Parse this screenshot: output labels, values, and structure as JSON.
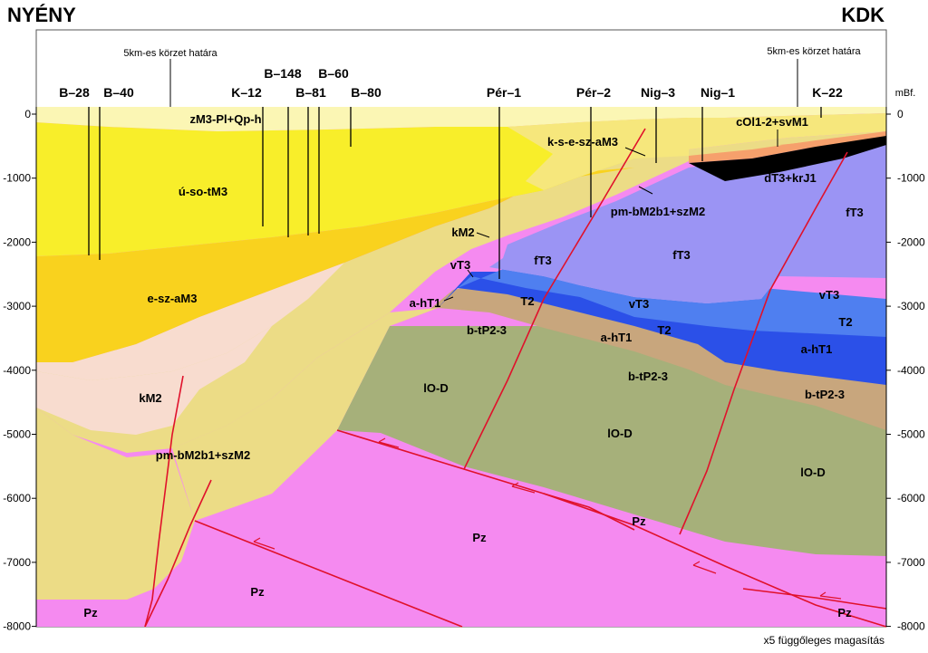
{
  "header": {
    "left_label": "NYÉNY",
    "right_label": "KDK"
  },
  "boundary_notes": {
    "left": "5km-es körzet határa",
    "right": "5km-es körzet határa"
  },
  "wells": [
    "B–28",
    "B–40",
    "K–12",
    "B–148",
    "B–81",
    "B–60",
    "B–80",
    "Pér–1",
    "Pér–2",
    "Nig–3",
    "Nig–1",
    "K–22"
  ],
  "axis": {
    "unit": "mBf.",
    "ticks": [
      "0",
      "-1000",
      "-2000",
      "-3000",
      "-4000",
      "-5000",
      "-6000",
      "-7000",
      "-8000"
    ]
  },
  "units": {
    "zm3": "zM3-Pl+Qp-h",
    "uso": "ú-so-tM3",
    "esz": "e-sz-aM3",
    "km2_left": "kM2",
    "pmb_left": "pm-bM2b1+szM2",
    "pz_1": "Pz",
    "pz_2": "Pz",
    "pz_3": "Pz",
    "pz_4": "Pz",
    "pz_5": "Pz",
    "kse": "k-s-e-sz-aM3",
    "col": "cOl1-2+svM1",
    "dt3": "dT3+krJ1",
    "pmb_right": "pm-bM2b1+szM2",
    "km2_mid": "kM2",
    "vt3_1": "vT3",
    "vt3_2": "vT3",
    "vt3_3": "vT3",
    "ft3_1": "fT3",
    "ft3_2": "fT3",
    "ft3_3": "fT3",
    "aht1_1": "a-hT1",
    "aht1_2": "a-hT1",
    "aht1_3": "a-hT1",
    "t2_1": "T2",
    "t2_2": "T2",
    "t2_3": "T2",
    "btp_1": "b-tP2-3",
    "btp_2": "b-tP2-3",
    "btp_3": "b-tP2-3",
    "lod_1": "lO-D",
    "lod_2": "lO-D",
    "lod_3": "lO-D"
  },
  "footer": {
    "exaggeration": "x5 függőleges magasítás"
  },
  "colors": {
    "pz": "#f58af0",
    "lod": "#a6b07a",
    "btp": "#c8a67d",
    "aht1": "#2b50e8",
    "t2": "#4f7ff0",
    "vt3": "#e2a6f2",
    "ft3": "#9b94f4",
    "pmb": "#ecdc86",
    "km2": "#f8dccf",
    "esz": "#f9d21e",
    "uso": "#f8ee2a",
    "zm3": "#fbf6b4",
    "kse": "#f6e77c",
    "col": "#f6a06c",
    "fault": "#e0112b"
  }
}
